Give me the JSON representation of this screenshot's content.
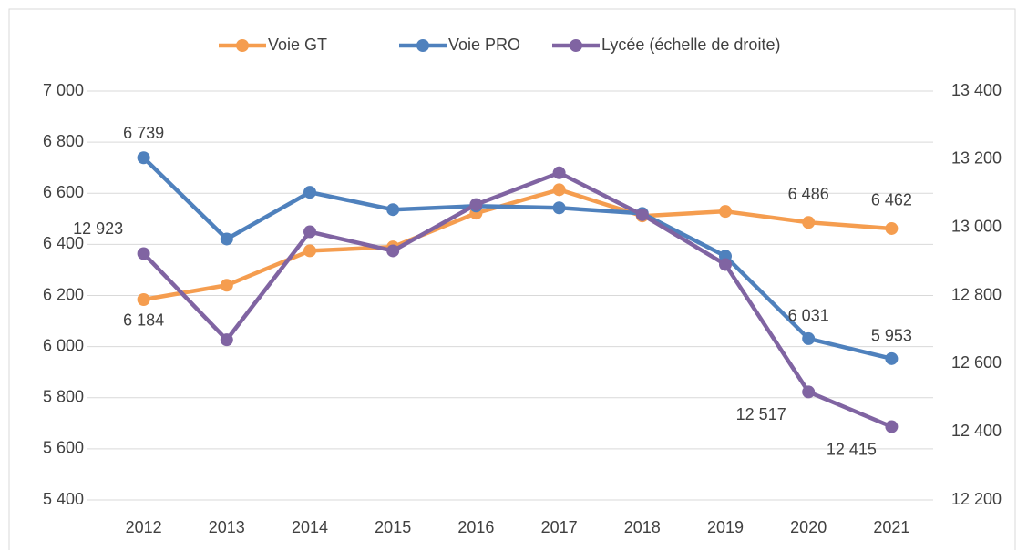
{
  "chart_data": {
    "type": "line",
    "categories": [
      "2012",
      "2013",
      "2014",
      "2015",
      "2016",
      "2017",
      "2018",
      "2019",
      "2020",
      "2021"
    ],
    "series": [
      {
        "name": "Voie GT",
        "color": "#f59d4f",
        "values": [
          6184,
          6240,
          6375,
          6390,
          6522,
          6614,
          6511,
          6529,
          6486,
          6462
        ],
        "value_labels": [
          "6 184",
          null,
          null,
          null,
          null,
          null,
          null,
          null,
          "6 486",
          "6 462"
        ]
      },
      {
        "name": "Voie PRO",
        "color": "#4f81bd",
        "values": [
          6739,
          6421,
          6604,
          6536,
          6550,
          6543,
          6521,
          6354,
          6031,
          5953
        ],
        "value_labels": [
          "6 739",
          null,
          null,
          null,
          null,
          null,
          null,
          null,
          "6 031",
          "5 953"
        ]
      },
      {
        "name": "Lycée (échelle de droite)",
        "color": "#8064a2",
        "axis": "y2",
        "values": [
          12923,
          12670,
          12987,
          12931,
          13067,
          13160,
          13037,
          12891,
          12517,
          12415
        ],
        "value_labels": [
          "12 923",
          null,
          null,
          null,
          null,
          null,
          null,
          null,
          "12 517",
          "12 415"
        ]
      }
    ],
    "ylim": [
      5400,
      7000
    ],
    "yticks": [
      {
        "value": 5400,
        "label": "5 400"
      },
      {
        "value": 5600,
        "label": "5 600"
      },
      {
        "value": 5800,
        "label": "5 800"
      },
      {
        "value": 6000,
        "label": "6 000"
      },
      {
        "value": 6200,
        "label": "6 200"
      },
      {
        "value": 6400,
        "label": "6 400"
      },
      {
        "value": 6600,
        "label": "6 600"
      },
      {
        "value": 6800,
        "label": "6 800"
      },
      {
        "value": 7000,
        "label": "7 000"
      }
    ],
    "y2lim": [
      12200,
      13400
    ],
    "y2ticks": [
      {
        "value": 12200,
        "label": "12 200"
      },
      {
        "value": 12400,
        "label": "12 400"
      },
      {
        "value": 12600,
        "label": "12 600"
      },
      {
        "value": 12800,
        "label": "12 800"
      },
      {
        "value": 13000,
        "label": "13 000"
      },
      {
        "value": 13200,
        "label": "13 200"
      },
      {
        "value": 13400,
        "label": "13 400"
      }
    ],
    "grid": true,
    "legend": "top"
  }
}
